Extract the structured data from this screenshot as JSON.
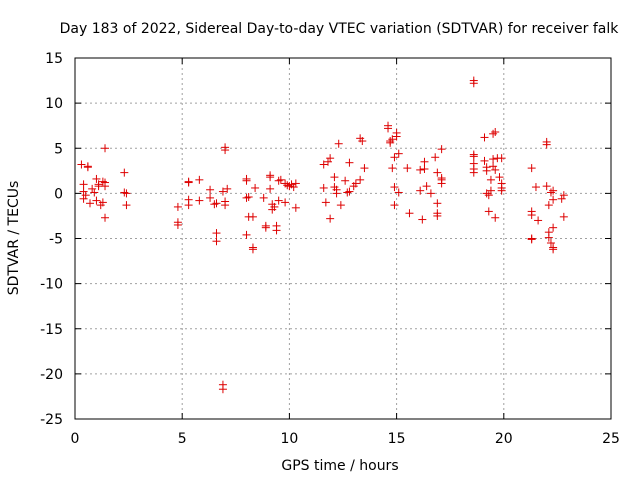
{
  "chart_data": {
    "type": "scatter",
    "title": "Day 183 of 2022, Sidereal Day-to-day VTEC variation (SDTVAR) for receiver falk",
    "xlabel": "GPS time / hours",
    "ylabel": "SDTVAR / TECUs",
    "xlim": [
      0,
      25
    ],
    "ylim": [
      -25,
      15
    ],
    "xticks": [
      0,
      5,
      10,
      15,
      20,
      25
    ],
    "yticks": [
      -25,
      -20,
      -15,
      -10,
      -5,
      0,
      5,
      10,
      15
    ],
    "grid": true,
    "marker": "plus",
    "series": [
      {
        "name": "SDTVAR",
        "color": "#dd0000",
        "points": [
          [
            0.3,
            3.2
          ],
          [
            0.4,
            1.0
          ],
          [
            0.4,
            0.2
          ],
          [
            0.4,
            -0.6
          ],
          [
            0.5,
            -0.2
          ],
          [
            0.6,
            3.0
          ],
          [
            0.6,
            2.9
          ],
          [
            0.7,
            -1.1
          ],
          [
            0.8,
            0.5
          ],
          [
            0.9,
            0.1
          ],
          [
            1.0,
            -0.8
          ],
          [
            1.0,
            1.6
          ],
          [
            1.1,
            0.8
          ],
          [
            1.1,
            1.0
          ],
          [
            1.2,
            -1.3
          ],
          [
            1.3,
            1.3
          ],
          [
            1.3,
            -1.0
          ],
          [
            1.4,
            5.0
          ],
          [
            1.4,
            -2.7
          ],
          [
            1.4,
            1.2
          ],
          [
            1.4,
            0.8
          ],
          [
            2.3,
            2.3
          ],
          [
            2.3,
            0.1
          ],
          [
            2.4,
            0.0
          ],
          [
            2.4,
            -1.3
          ],
          [
            4.8,
            -1.5
          ],
          [
            4.8,
            -3.2
          ],
          [
            4.8,
            -3.5
          ],
          [
            5.3,
            1.2
          ],
          [
            5.3,
            1.3
          ],
          [
            5.3,
            -0.7
          ],
          [
            5.3,
            -1.3
          ],
          [
            5.8,
            1.5
          ],
          [
            5.8,
            -0.8
          ],
          [
            6.3,
            0.4
          ],
          [
            6.3,
            -0.5
          ],
          [
            6.5,
            -1.2
          ],
          [
            6.6,
            -4.4
          ],
          [
            6.6,
            -5.3
          ],
          [
            6.6,
            -1.1
          ],
          [
            6.9,
            0.2
          ],
          [
            7.0,
            -0.9
          ],
          [
            7.0,
            5.1
          ],
          [
            7.0,
            4.8
          ],
          [
            7.0,
            -1.3
          ],
          [
            7.1,
            0.5
          ],
          [
            6.9,
            -21.2
          ],
          [
            6.9,
            -21.7
          ],
          [
            8.0,
            1.6
          ],
          [
            8.0,
            1.4
          ],
          [
            8.0,
            -0.5
          ],
          [
            8.1,
            -0.4
          ],
          [
            8.1,
            -2.6
          ],
          [
            8.0,
            -4.6
          ],
          [
            8.3,
            -2.6
          ],
          [
            8.3,
            -6.0
          ],
          [
            8.3,
            -6.2
          ],
          [
            8.4,
            0.6
          ],
          [
            8.8,
            -0.5
          ],
          [
            8.9,
            -3.6
          ],
          [
            8.9,
            -3.8
          ],
          [
            9.1,
            0.5
          ],
          [
            9.1,
            2.0
          ],
          [
            9.1,
            1.8
          ],
          [
            9.2,
            -1.8
          ],
          [
            9.2,
            -1.2
          ],
          [
            9.3,
            -1.5
          ],
          [
            9.4,
            -3.6
          ],
          [
            9.4,
            -4.1
          ],
          [
            9.5,
            1.4
          ],
          [
            9.5,
            -0.8
          ],
          [
            9.6,
            1.5
          ],
          [
            9.8,
            1.1
          ],
          [
            9.8,
            -1.0
          ],
          [
            9.9,
            0.9
          ],
          [
            10.0,
            0.8
          ],
          [
            10.1,
            1.0
          ],
          [
            10.2,
            0.7
          ],
          [
            10.3,
            -1.6
          ],
          [
            10.3,
            1.1
          ],
          [
            11.6,
            0.6
          ],
          [
            11.6,
            3.2
          ],
          [
            11.7,
            -1.0
          ],
          [
            11.8,
            3.5
          ],
          [
            11.9,
            3.9
          ],
          [
            11.9,
            -2.8
          ],
          [
            12.1,
            1.8
          ],
          [
            12.1,
            0.7
          ],
          [
            12.2,
            0.0
          ],
          [
            12.2,
            0.4
          ],
          [
            12.3,
            5.5
          ],
          [
            12.4,
            -1.3
          ],
          [
            12.6,
            1.4
          ],
          [
            12.7,
            0.1
          ],
          [
            12.8,
            0.2
          ],
          [
            12.8,
            3.4
          ],
          [
            13.0,
            0.8
          ],
          [
            13.1,
            1.1
          ],
          [
            13.3,
            6.1
          ],
          [
            13.3,
            1.5
          ],
          [
            13.4,
            5.8
          ],
          [
            13.5,
            2.8
          ],
          [
            14.6,
            7.5
          ],
          [
            14.6,
            7.2
          ],
          [
            14.7,
            5.8
          ],
          [
            14.7,
            5.6
          ],
          [
            14.8,
            6.0
          ],
          [
            14.8,
            2.8
          ],
          [
            14.9,
            0.7
          ],
          [
            14.9,
            -1.3
          ],
          [
            14.9,
            4.0
          ],
          [
            15.0,
            6.3
          ],
          [
            15.0,
            6.7
          ],
          [
            15.1,
            4.4
          ],
          [
            15.1,
            0.1
          ],
          [
            15.5,
            2.8
          ],
          [
            15.6,
            -2.2
          ],
          [
            16.1,
            2.6
          ],
          [
            16.1,
            0.3
          ],
          [
            16.2,
            -2.9
          ],
          [
            16.3,
            2.7
          ],
          [
            16.3,
            3.5
          ],
          [
            16.4,
            0.8
          ],
          [
            16.6,
            0.0
          ],
          [
            16.8,
            4.0
          ],
          [
            16.9,
            2.3
          ],
          [
            16.9,
            -1.1
          ],
          [
            16.9,
            -2.2
          ],
          [
            16.9,
            -2.5
          ],
          [
            17.1,
            4.9
          ],
          [
            17.1,
            1.7
          ],
          [
            17.1,
            1.5
          ],
          [
            17.1,
            1.1
          ],
          [
            18.6,
            12.5
          ],
          [
            18.6,
            12.2
          ],
          [
            18.6,
            4.3
          ],
          [
            18.6,
            4.1
          ],
          [
            18.6,
            3.3
          ],
          [
            18.6,
            2.7
          ],
          [
            18.6,
            2.3
          ],
          [
            19.1,
            6.2
          ],
          [
            19.1,
            3.6
          ],
          [
            19.2,
            2.9
          ],
          [
            19.2,
            2.5
          ],
          [
            19.2,
            0.0
          ],
          [
            19.3,
            -0.2
          ],
          [
            19.3,
            -2.0
          ],
          [
            19.4,
            0.3
          ],
          [
            19.4,
            1.5
          ],
          [
            19.5,
            3.0
          ],
          [
            19.5,
            3.8
          ],
          [
            19.5,
            6.6
          ],
          [
            19.6,
            6.8
          ],
          [
            19.6,
            2.6
          ],
          [
            19.6,
            -2.7
          ],
          [
            19.7,
            3.9
          ],
          [
            19.8,
            1.8
          ],
          [
            19.9,
            1.1
          ],
          [
            19.9,
            0.6
          ],
          [
            19.9,
            0.3
          ],
          [
            19.9,
            3.9
          ],
          [
            21.3,
            2.8
          ],
          [
            21.3,
            -2.0
          ],
          [
            21.3,
            -2.4
          ],
          [
            21.3,
            -5.0
          ],
          [
            21.3,
            -5.1
          ],
          [
            21.5,
            0.7
          ],
          [
            21.6,
            -3.0
          ],
          [
            22.0,
            5.4
          ],
          [
            22.0,
            5.7
          ],
          [
            22.0,
            0.8
          ],
          [
            22.1,
            -1.3
          ],
          [
            22.1,
            -4.3
          ],
          [
            22.1,
            -4.9
          ],
          [
            22.2,
            0.1
          ],
          [
            22.2,
            -5.5
          ],
          [
            22.3,
            -6.0
          ],
          [
            22.3,
            -6.2
          ],
          [
            22.3,
            -3.8
          ],
          [
            22.3,
            -0.7
          ],
          [
            22.3,
            0.3
          ],
          [
            22.7,
            -0.6
          ],
          [
            22.8,
            -0.2
          ],
          [
            22.8,
            -2.6
          ]
        ]
      }
    ]
  }
}
